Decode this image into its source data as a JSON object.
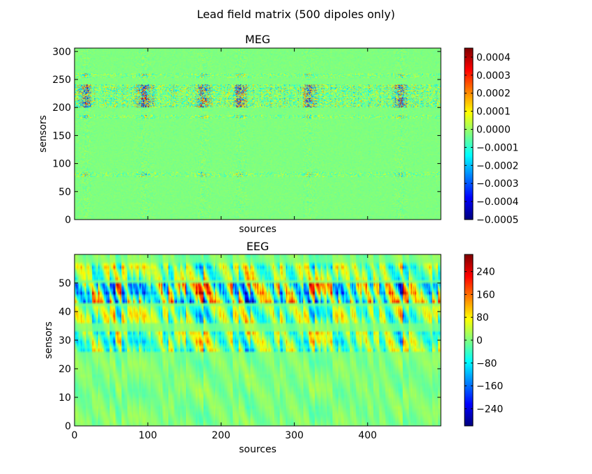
{
  "figure": {
    "suptitle": "Lead field matrix (500 dipoles only)"
  },
  "chart_data": [
    {
      "type": "heatmap",
      "title": "MEG",
      "xlabel": "sources",
      "ylabel": "sensors",
      "n_sources": 500,
      "n_sensors": 306,
      "xlim": [
        0,
        500
      ],
      "ylim": [
        0,
        306
      ],
      "xticks_visible": false,
      "yticks": [
        0,
        50,
        100,
        150,
        200,
        250,
        300
      ],
      "colormap": "jet",
      "vmin": -0.0005,
      "vmax": 0.00045,
      "colorbar_ticks": [
        0.0004,
        0.0003,
        0.0002,
        0.0001,
        0.0,
        -0.0001,
        -0.0002,
        -0.0003,
        -0.0004,
        -0.0005
      ],
      "colorbar_tick_labels": [
        "0.0004",
        "0.0003",
        "0.0002",
        "0.0001",
        "0.0000",
        "−0.0001",
        "−0.0002",
        "−0.0003",
        "−0.0004",
        "−0.0005"
      ],
      "strong_sensor_bands": [
        [
          200,
          240
        ],
        [
          180,
          186
        ],
        [
          76,
          84
        ],
        [
          253,
          260
        ]
      ],
      "strong_source_columns": [
        15,
        95,
        175,
        225,
        320,
        445
      ]
    },
    {
      "type": "heatmap",
      "title": "EEG",
      "xlabel": "sources",
      "ylabel": "sensors",
      "n_sources": 500,
      "n_sensors": 60,
      "xlim": [
        0,
        500
      ],
      "ylim": [
        0,
        60
      ],
      "xticks": [
        0,
        100,
        200,
        300,
        400
      ],
      "yticks": [
        0,
        10,
        20,
        30,
        40,
        50
      ],
      "colormap": "jet",
      "vmin": -300,
      "vmax": 300,
      "colorbar_ticks": [
        240,
        160,
        80,
        0,
        -80,
        -160,
        -240
      ],
      "colorbar_tick_labels": [
        "240",
        "160",
        "80",
        "0",
        "−80",
        "−160",
        "−240"
      ],
      "strong_sensor_bands": [
        [
          43,
          49
        ],
        [
          36,
          41
        ],
        [
          26,
          32
        ],
        [
          51,
          56
        ]
      ],
      "strong_source_columns": [
        55,
        175,
        235,
        325,
        445
      ]
    }
  ]
}
